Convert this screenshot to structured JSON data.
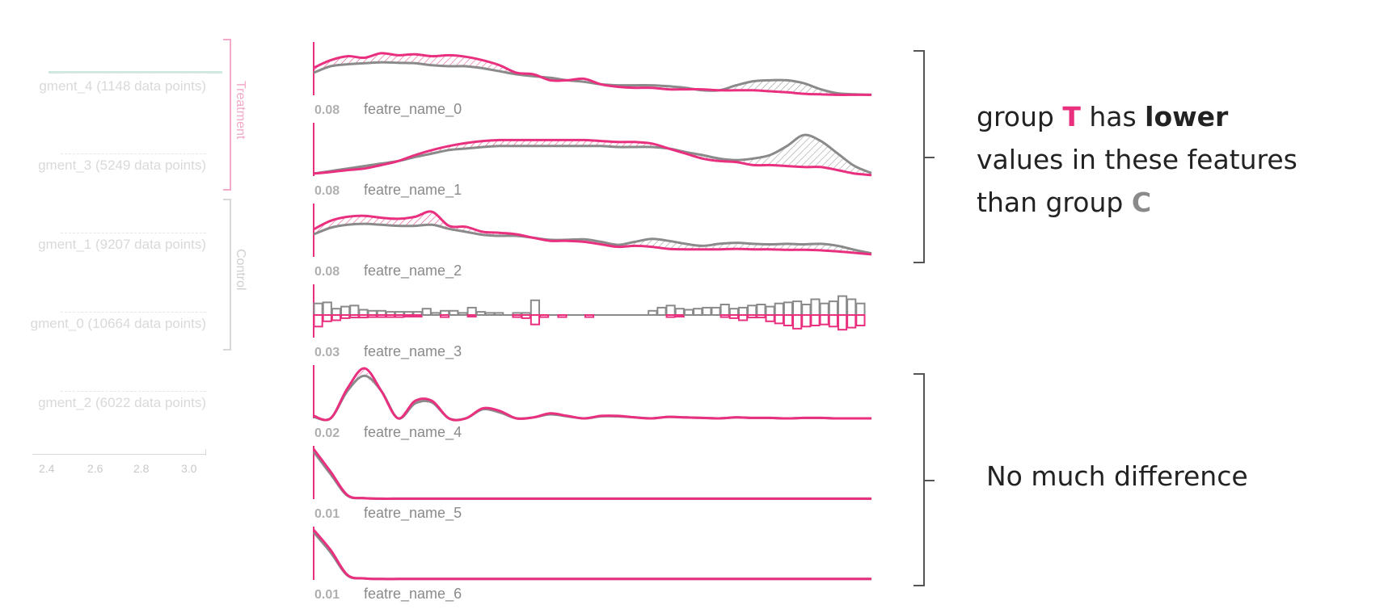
{
  "colors": {
    "treatment": "#e8307f",
    "control": "#8a8a8a",
    "bracket": "#555555"
  },
  "left_panel": {
    "segments": [
      {
        "label": "gment_4 (1148 data points)"
      },
      {
        "label": "gment_3 (5249 data points)"
      },
      {
        "label": "gment_1 (9207 data points)"
      },
      {
        "label": "gment_0 (10664 data points)"
      },
      {
        "label": "gment_2 (6022 data points)"
      }
    ],
    "groups": [
      {
        "label": "Treatment"
      },
      {
        "label": "Control"
      }
    ],
    "x_ticks": [
      "2.4",
      "2.6",
      "2.8",
      "3.0"
    ]
  },
  "annotations": {
    "lower": {
      "part1": "group ",
      "t": "T",
      "part2": " has ",
      "lower": "lower",
      "part3": " values in these features than group ",
      "c": "C"
    },
    "nodiff": "No much difference"
  },
  "chart_data": {
    "type": "area",
    "description_series": [
      "group T",
      "group C"
    ],
    "features": [
      {
        "name": "featre_name_0",
        "scale": "0.08",
        "kind": "line",
        "T": [
          0.55,
          0.7,
          0.78,
          0.75,
          0.84,
          0.8,
          0.82,
          0.78,
          0.8,
          0.77,
          0.7,
          0.6,
          0.45,
          0.42,
          0.3,
          0.3,
          0.33,
          0.22,
          0.17,
          0.15,
          0.15,
          0.12,
          0.12,
          0.12,
          0.1,
          0.1,
          0.1,
          0.08,
          0.06,
          0.03,
          0.02,
          0.01,
          0.01,
          0.01
        ],
        "C": [
          0.45,
          0.58,
          0.62,
          0.64,
          0.66,
          0.65,
          0.64,
          0.6,
          0.58,
          0.58,
          0.54,
          0.48,
          0.42,
          0.38,
          0.35,
          0.3,
          0.27,
          0.22,
          0.2,
          0.2,
          0.2,
          0.18,
          0.15,
          0.1,
          0.1,
          0.2,
          0.28,
          0.3,
          0.3,
          0.24,
          0.12,
          0.04,
          0.02,
          0.01
        ]
      },
      {
        "name": "featre_name_1",
        "scale": "0.08",
        "kind": "line",
        "T": [
          0.05,
          0.08,
          0.12,
          0.15,
          0.22,
          0.3,
          0.42,
          0.52,
          0.6,
          0.66,
          0.7,
          0.72,
          0.72,
          0.72,
          0.72,
          0.72,
          0.72,
          0.7,
          0.68,
          0.68,
          0.65,
          0.55,
          0.45,
          0.35,
          0.3,
          0.28,
          0.22,
          0.22,
          0.2,
          0.18,
          0.18,
          0.12,
          0.05,
          0.02
        ],
        "C": [
          0.05,
          0.1,
          0.15,
          0.2,
          0.25,
          0.3,
          0.38,
          0.45,
          0.52,
          0.55,
          0.58,
          0.6,
          0.6,
          0.6,
          0.6,
          0.6,
          0.6,
          0.6,
          0.58,
          0.58,
          0.58,
          0.55,
          0.48,
          0.42,
          0.35,
          0.32,
          0.35,
          0.42,
          0.6,
          0.82,
          0.7,
          0.45,
          0.2,
          0.06
        ]
      },
      {
        "name": "featre_name_2",
        "scale": "0.08",
        "kind": "line",
        "T": [
          0.55,
          0.72,
          0.8,
          0.82,
          0.78,
          0.76,
          0.8,
          0.9,
          0.62,
          0.6,
          0.5,
          0.48,
          0.45,
          0.38,
          0.32,
          0.32,
          0.3,
          0.25,
          0.2,
          0.22,
          0.2,
          0.16,
          0.15,
          0.15,
          0.15,
          0.16,
          0.15,
          0.15,
          0.14,
          0.14,
          0.13,
          0.11,
          0.08,
          0.05
        ],
        "C": [
          0.45,
          0.58,
          0.64,
          0.66,
          0.64,
          0.62,
          0.62,
          0.64,
          0.56,
          0.5,
          0.44,
          0.42,
          0.42,
          0.38,
          0.34,
          0.34,
          0.35,
          0.3,
          0.24,
          0.3,
          0.36,
          0.32,
          0.26,
          0.22,
          0.26,
          0.28,
          0.26,
          0.25,
          0.26,
          0.25,
          0.26,
          0.22,
          0.14,
          0.07
        ]
      },
      {
        "name": "featre_name_3",
        "scale": "0.03",
        "kind": "histogram",
        "T": [
          0.55,
          0.3,
          0.25,
          0.15,
          0.12,
          0.12,
          0.1,
          0.1,
          0.1,
          0.1,
          0.08,
          0.08,
          0.05,
          0.02,
          0.1,
          0.02,
          0.02,
          0.08,
          0.02,
          0.02,
          0.02,
          0.02,
          0.1,
          0.15,
          0.45,
          0.1,
          0.05,
          0.1,
          0.02,
          0.02,
          0.1,
          0.05,
          0.05,
          0.05,
          0.02,
          0.02,
          0.05,
          0.05,
          0.05,
          0.1,
          0.08,
          0.05,
          0.05,
          0.05,
          0.05,
          0.1,
          0.15,
          0.25,
          0.12,
          0.12,
          0.3,
          0.4,
          0.5,
          0.65,
          0.55,
          0.5,
          0.45,
          0.55,
          0.7,
          0.6,
          0.5
        ],
        "C": [
          0.55,
          0.6,
          0.3,
          0.4,
          0.45,
          0.25,
          0.2,
          0.2,
          0.15,
          0.15,
          0.15,
          0.15,
          0.3,
          0.1,
          0.2,
          0.2,
          0.1,
          0.35,
          0.15,
          0.1,
          0.1,
          0.05,
          0.1,
          0.1,
          0.7,
          0.05,
          0.05,
          0.05,
          0.05,
          0.05,
          0.05,
          0.05,
          0.05,
          0.05,
          0.05,
          0.05,
          0.05,
          0.2,
          0.35,
          0.45,
          0.3,
          0.25,
          0.3,
          0.35,
          0.35,
          0.5,
          0.3,
          0.35,
          0.45,
          0.5,
          0.4,
          0.55,
          0.6,
          0.65,
          0.5,
          0.75,
          0.55,
          0.65,
          0.9,
          0.75,
          0.55
        ]
      },
      {
        "name": "featre_name_4",
        "scale": "0.02",
        "kind": "line",
        "T": [
          0.05,
          0.0,
          0.6,
          1.0,
          0.55,
          0.0,
          0.35,
          0.35,
          0.0,
          0.0,
          0.2,
          0.15,
          0.0,
          0.02,
          0.1,
          0.05,
          0.0,
          0.05,
          0.05,
          0.02,
          0.0,
          0.03,
          0.02,
          0.01,
          0.0,
          0.02,
          0.01,
          0.01,
          0.0,
          0.01,
          0.01,
          0.0,
          0.0,
          0.0
        ],
        "C": [
          0.03,
          0.0,
          0.55,
          0.85,
          0.55,
          0.0,
          0.3,
          0.32,
          0.0,
          0.0,
          0.18,
          0.12,
          0.0,
          0.02,
          0.08,
          0.04,
          0.0,
          0.04,
          0.04,
          0.02,
          0.0,
          0.03,
          0.02,
          0.01,
          0.0,
          0.02,
          0.01,
          0.01,
          0.0,
          0.01,
          0.01,
          0.0,
          0.0,
          0.0
        ]
      },
      {
        "name": "featre_name_5",
        "scale": "0.01",
        "kind": "line",
        "T": [
          1.0,
          0.55,
          0.08,
          0.02,
          0.01,
          0.01,
          0.01,
          0.01,
          0.01,
          0.01,
          0.01,
          0.01,
          0.01,
          0.01,
          0.01,
          0.01,
          0.01,
          0.01,
          0.01,
          0.01,
          0.01,
          0.01,
          0.01,
          0.01,
          0.01,
          0.01,
          0.01,
          0.01,
          0.01,
          0.01,
          0.01,
          0.01,
          0.01,
          0.01
        ],
        "C": [
          0.95,
          0.5,
          0.07,
          0.02,
          0.01,
          0.01,
          0.01,
          0.01,
          0.01,
          0.01,
          0.01,
          0.01,
          0.01,
          0.01,
          0.01,
          0.01,
          0.01,
          0.01,
          0.01,
          0.01,
          0.01,
          0.01,
          0.01,
          0.01,
          0.01,
          0.01,
          0.01,
          0.01,
          0.01,
          0.01,
          0.01,
          0.01,
          0.01,
          0.01
        ]
      },
      {
        "name": "featre_name_6",
        "scale": "0.01",
        "kind": "line",
        "T": [
          1.0,
          0.6,
          0.1,
          0.03,
          0.02,
          0.02,
          0.02,
          0.02,
          0.02,
          0.02,
          0.02,
          0.02,
          0.02,
          0.02,
          0.02,
          0.02,
          0.02,
          0.02,
          0.02,
          0.02,
          0.02,
          0.02,
          0.02,
          0.02,
          0.02,
          0.02,
          0.02,
          0.02,
          0.02,
          0.02,
          0.02,
          0.02,
          0.02,
          0.02
        ],
        "C": [
          0.95,
          0.55,
          0.09,
          0.03,
          0.02,
          0.02,
          0.02,
          0.02,
          0.02,
          0.02,
          0.02,
          0.02,
          0.02,
          0.02,
          0.02,
          0.02,
          0.02,
          0.02,
          0.02,
          0.02,
          0.02,
          0.02,
          0.02,
          0.02,
          0.02,
          0.02,
          0.02,
          0.02,
          0.02,
          0.02,
          0.02,
          0.02,
          0.02,
          0.02
        ]
      }
    ]
  }
}
